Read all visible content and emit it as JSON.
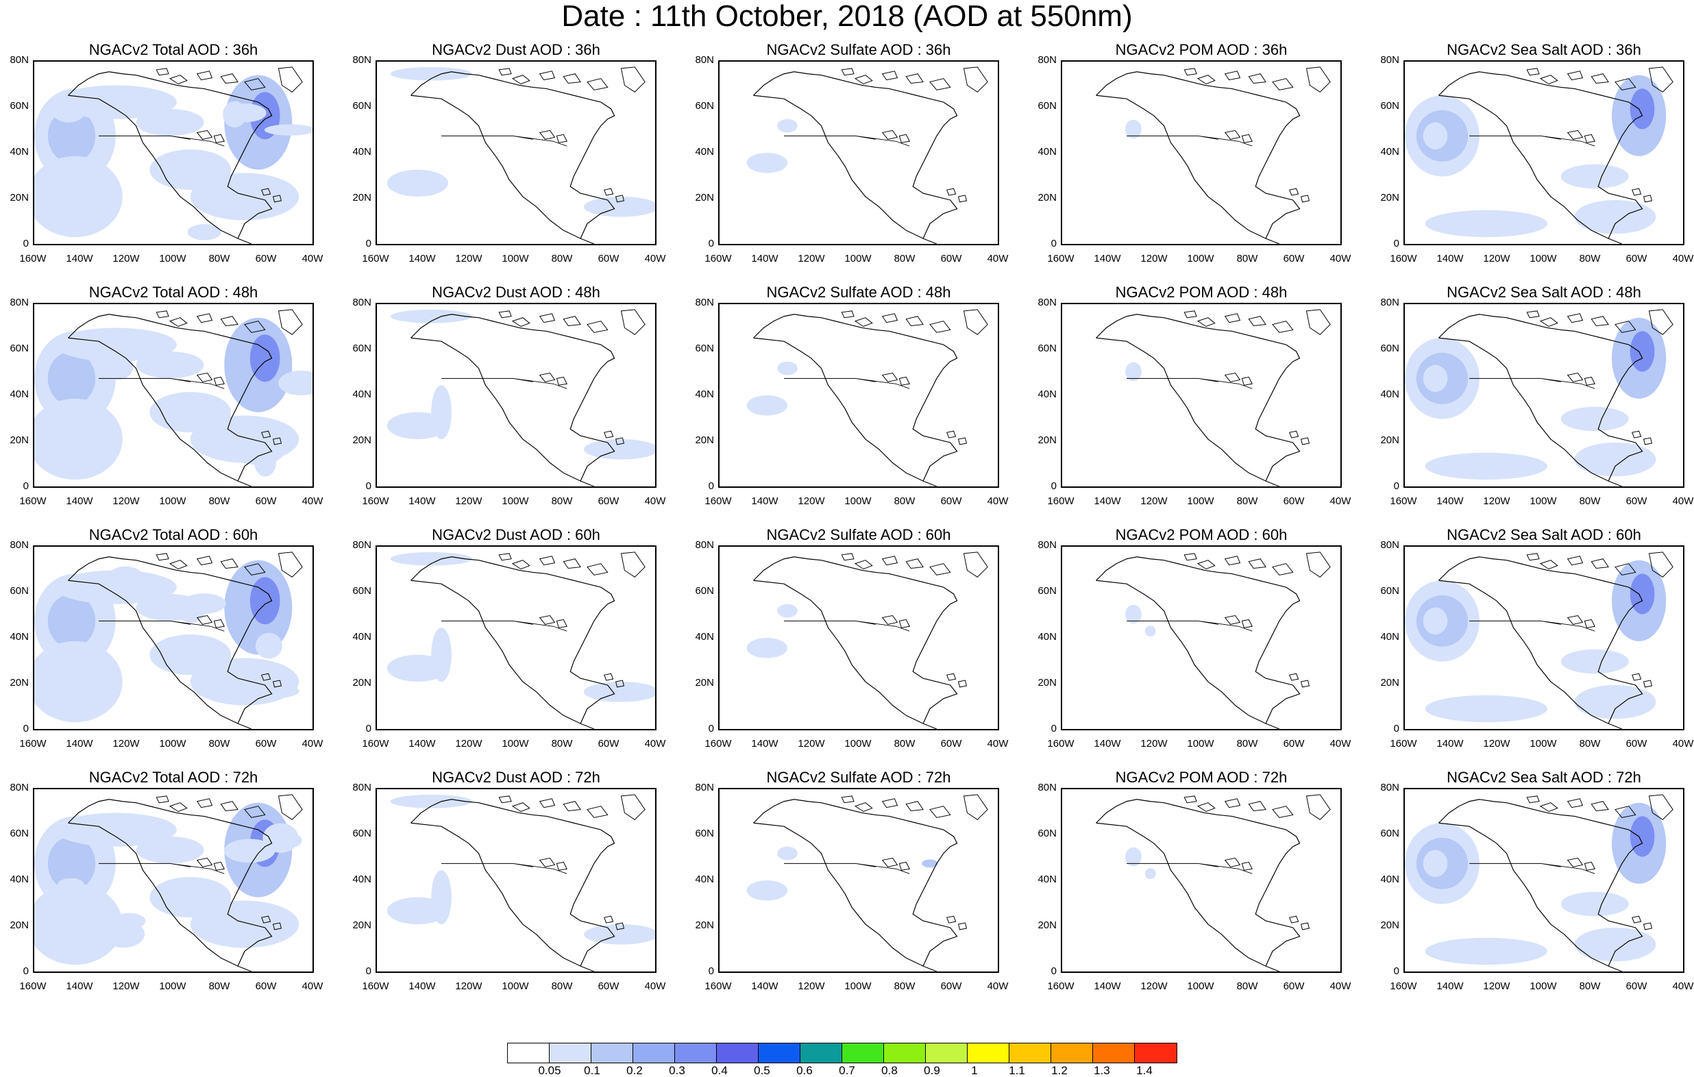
{
  "page": {
    "title": "Date : 11th October, 2018 (AOD at 550nm)"
  },
  "axes": {
    "lat_ticks": [
      "80N",
      "60N",
      "40N",
      "20N",
      "0"
    ],
    "lon_ticks": [
      "160W",
      "140W",
      "120W",
      "100W",
      "80W",
      "60W",
      "40W"
    ]
  },
  "rows": [
    {
      "hour": "36h",
      "panels": [
        {
          "title": "NGACv2 Total AOD : 36h",
          "species": "total"
        },
        {
          "title": "NGACv2 Dust AOD : 36h",
          "species": "dust"
        },
        {
          "title": "NGACv2 Sulfate AOD : 36h",
          "species": "sulfate"
        },
        {
          "title": "NGACv2 POM AOD : 36h",
          "species": "pom"
        },
        {
          "title": "NGACv2 Sea Salt AOD : 36h",
          "species": "seasalt"
        }
      ]
    },
    {
      "hour": "48h",
      "panels": [
        {
          "title": "NGACv2 Total AOD : 48h",
          "species": "total"
        },
        {
          "title": "NGACv2 Dust AOD : 48h",
          "species": "dust"
        },
        {
          "title": "NGACv2 Sulfate AOD : 48h",
          "species": "sulfate"
        },
        {
          "title": "NGACv2 POM AOD : 48h",
          "species": "pom"
        },
        {
          "title": "NGACv2 Sea Salt AOD : 48h",
          "species": "seasalt"
        }
      ]
    },
    {
      "hour": "60h",
      "panels": [
        {
          "title": "NGACv2 Total AOD : 60h",
          "species": "total"
        },
        {
          "title": "NGACv2 Dust AOD : 60h",
          "species": "dust"
        },
        {
          "title": "NGACv2 Sulfate AOD : 60h",
          "species": "sulfate"
        },
        {
          "title": "NGACv2 POM AOD : 60h",
          "species": "pom"
        },
        {
          "title": "NGACv2 Sea Salt AOD : 60h",
          "species": "seasalt"
        }
      ]
    },
    {
      "hour": "72h",
      "panels": [
        {
          "title": "NGACv2 Total AOD : 72h",
          "species": "total"
        },
        {
          "title": "NGACv2 Dust AOD : 72h",
          "species": "dust"
        },
        {
          "title": "NGACv2 Sulfate AOD : 72h",
          "species": "sulfate"
        },
        {
          "title": "NGACv2 POM AOD : 72h",
          "species": "pom"
        },
        {
          "title": "NGACv2 Sea Salt  AOD : 72h",
          "species": "seasalt"
        }
      ]
    }
  ],
  "colorbar": {
    "colors": [
      "#ffffff",
      "#d6e2fb",
      "#b5c8f6",
      "#94acf4",
      "#7b8ef2",
      "#5d62ea",
      "#0d5cf2",
      "#0c9a9a",
      "#42e61c",
      "#8ef010",
      "#c4f541",
      "#fffa00",
      "#ffc800",
      "#ffa400",
      "#ff7200",
      "#ff2a10"
    ],
    "labels": [
      "0.05",
      "0.1",
      "0.2",
      "0.3",
      "0.4",
      "0.5",
      "0.6",
      "0.7",
      "0.8",
      "0.9",
      "1",
      "1.1",
      "1.2",
      "1.3",
      "1.4"
    ]
  },
  "land_color": "#000000",
  "aod_fill_light": "#d6e2fb",
  "aod_fill_mid": "#b5c8f6",
  "aod_fill_strong": "#7b8ef2"
}
